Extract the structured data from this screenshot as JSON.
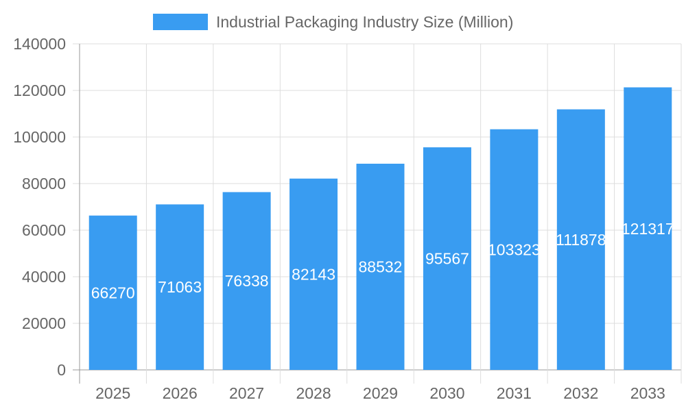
{
  "chart_data": {
    "type": "bar",
    "title": "",
    "categories": [
      "2025",
      "2026",
      "2027",
      "2028",
      "2029",
      "2030",
      "2031",
      "2032",
      "2033"
    ],
    "series": [
      {
        "name": "Industrial Packaging Industry Size (Million)",
        "values": [
          66270,
          71063,
          76338,
          82143,
          88532,
          95567,
          103323,
          111878,
          121317
        ],
        "color": "#399cf1"
      }
    ],
    "ylim": [
      0,
      140000
    ],
    "yticks": [
      0,
      20000,
      40000,
      60000,
      80000,
      100000,
      120000,
      140000
    ],
    "grid": true,
    "legend": "top",
    "data_labels": true
  }
}
